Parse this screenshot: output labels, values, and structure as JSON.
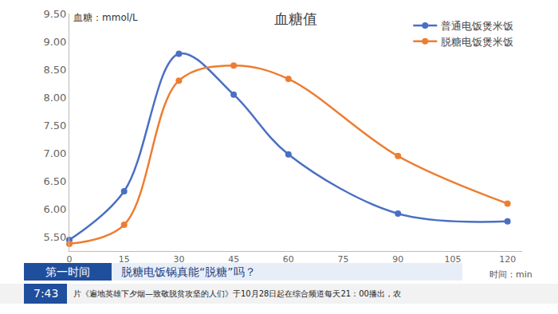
{
  "chart_data": {
    "type": "line",
    "title": "血糖值",
    "y_label": "血糖：mmol/L",
    "x_label": "时间：min",
    "x": [
      0,
      15,
      30,
      45,
      60,
      90,
      120
    ],
    "series": [
      {
        "name": "普通电饭煲米饭",
        "color": "#4a6fc4",
        "values": [
          5.45,
          6.32,
          8.78,
          8.05,
          6.98,
          5.92,
          5.78
        ]
      },
      {
        "name": "脱糖电饭煲米饭",
        "color": "#ed7d31",
        "values": [
          5.38,
          5.72,
          8.3,
          8.57,
          8.33,
          6.95,
          6.1
        ]
      }
    ],
    "xlim": [
      0,
      124
    ],
    "xticks": [
      0,
      15,
      30,
      45,
      60,
      75,
      90,
      105,
      120
    ],
    "ylim": [
      5.25,
      9.5
    ],
    "yticks": [
      {
        "value": 5.5,
        "label": "5.50"
      },
      {
        "value": 6,
        "label": "6.00"
      },
      {
        "value": 6.5,
        "label": "6.50"
      },
      {
        "value": 7,
        "label": "7.00"
      },
      {
        "value": 7.5,
        "label": "7.50"
      },
      {
        "value": 8,
        "label": "8.00"
      },
      {
        "value": 8.5,
        "label": "8.50"
      },
      {
        "value": 9,
        "label": "9.00"
      },
      {
        "value": 9.5,
        "label": "9.50"
      }
    ],
    "grid": false,
    "legend": "top right",
    "marker": "circle",
    "line_style": "spline",
    "annotations": [
      {
        "text": "第一时间"
      },
      {
        "text": "脱糖电饭锅真能“脱糖”吗？"
      },
      {
        "text": "7:43"
      },
      {
        "text": "片《遍地英雄下夕烟—致敬脱贫攻坚的人们》于10月28日起在综合频道每天21：00播出，农"
      }
    ]
  }
}
